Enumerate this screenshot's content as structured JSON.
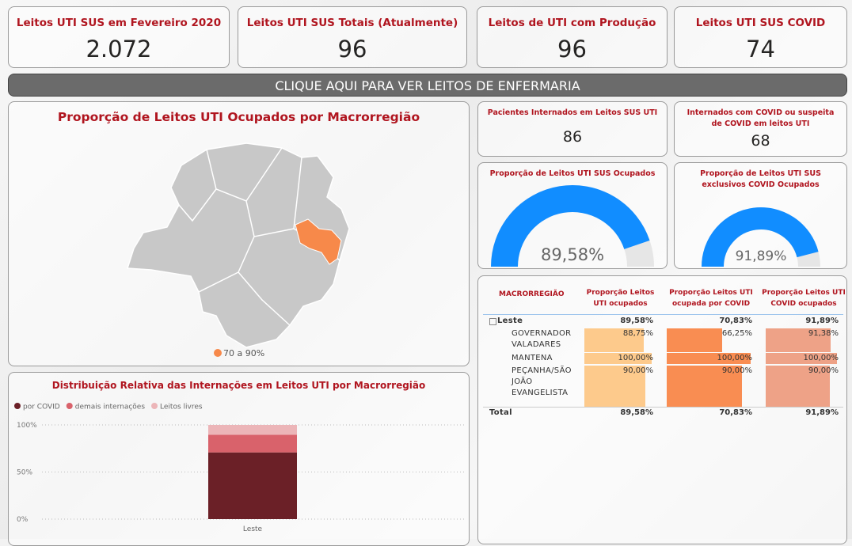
{
  "cards": [
    {
      "title": "Leitos UTI SUS em Fevereiro 2020",
      "value": "2.072"
    },
    {
      "title": "Leitos UTI SUS Totais (Atualmente)",
      "value": "96"
    },
    {
      "title": "Leitos de UTI com Produção",
      "value": "96"
    },
    {
      "title": "Leitos UTI SUS COVID",
      "value": "74"
    }
  ],
  "button": "CLIQUE AQUI PARA VER LEITOS DE ENFERMARIA",
  "map": {
    "title": "Proporção de Leitos UTI Ocupados por Macrorregião",
    "legend": "70 a 90%"
  },
  "small_cards": [
    {
      "title": "Pacientes Internados em Leitos SUS UTI",
      "value": "86"
    },
    {
      "title": "Internados com COVID ou suspeita de COVID em leitos UTI",
      "value": "68"
    }
  ],
  "table": {
    "header": [
      "MACRORREGIÃO",
      "Proporção Leitos UTI ocupados",
      "Proporção Leitos UTI ocupada por COVID",
      "Proporção Leitos UTI COVID ocupados"
    ],
    "xlim": [
      0,
      100
    ],
    "rows": [
      [
        "Leste",
        "89,58%",
        "70,83%",
        "91,89%"
      ],
      [
        "GOVERNADOR VALADARES",
        {
          "value": 88.75,
          "label": "88,75%"
        },
        {
          "value": 66.25,
          "label": "66,25%"
        },
        {
          "value": 91.38,
          "label": "91,38%"
        }
      ],
      [
        "MANTENA",
        {
          "value": 100,
          "label": "100,00%"
        },
        {
          "value": 100,
          "label": "100,00%"
        },
        {
          "value": 100,
          "label": "100,00%"
        }
      ],
      [
        "PEÇANHA/SÃO JOÃO EVANGELISTA",
        {
          "value": 90,
          "label": "90,00%"
        },
        {
          "value": 90,
          "label": "90,00%"
        },
        {
          "value": 90,
          "label": "90,00%"
        }
      ],
      [
        "Total",
        "89,58%",
        "70,83%",
        "91,89%"
      ]
    ],
    "bar_colors": [
      "#fdca8c",
      "#f98d52",
      "#eea287"
    ]
  },
  "chart_data": [
    {
      "type": "stacked_bar",
      "title": "Distribuição Relativa das Internações em Leitos UTI por Macrorregião",
      "categories": [
        "Leste"
      ],
      "series": [
        {
          "name": "por COVID",
          "color": "#6b2027",
          "values": [
            70.83
          ]
        },
        {
          "name": "demais internações",
          "color": "#d9626b",
          "values": [
            18.75
          ]
        },
        {
          "name": "Leitos livres",
          "color": "#ecb5b8",
          "values": [
            10.42
          ]
        }
      ],
      "ylim": [
        0,
        100
      ],
      "yticks": [
        {
          "value": 0,
          "label": "0%"
        },
        {
          "value": 50,
          "label": "50%"
        },
        {
          "value": 100,
          "label": "100%"
        }
      ],
      "grid": true
    },
    {
      "type": "gauge",
      "title": "Proporção de Leitos UTI SUS Ocupados",
      "values": [
        89.58
      ],
      "value_labels": [
        "89,58%"
      ],
      "ylim": [
        0,
        100
      ],
      "color": "#118dff"
    },
    {
      "type": "gauge",
      "title": "Proporção de Leitos UTI SUS exclusivos COVID Ocupados",
      "values": [
        91.89
      ],
      "value_labels": [
        "91,89%"
      ],
      "ylim": [
        0,
        100
      ],
      "color": "#118dff"
    }
  ]
}
